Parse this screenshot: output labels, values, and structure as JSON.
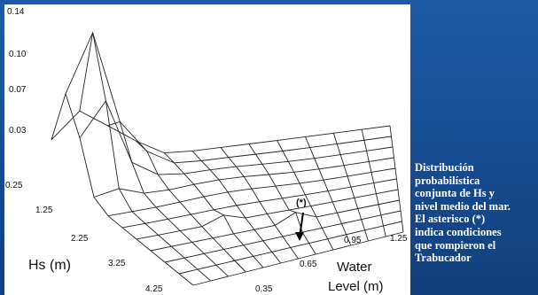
{
  "plot": {
    "z_ticks": [
      "0.14",
      "0.10",
      "0.07",
      "0.03"
    ],
    "hs_ticks": [
      "0.25",
      "1.25",
      "2.25",
      "3.25",
      "4.25"
    ],
    "hs_label": "Hs (m)",
    "wl_ticks": [
      "1.25",
      "0.95",
      "0.65",
      "0.35"
    ],
    "wl_label": [
      "Water",
      "Level (m)"
    ],
    "marker": "(*)"
  },
  "caption": [
    "Distribución",
    "probabilística",
    "conjunta de Hs y",
    "nivel medio del mar.",
    "El asterisco (*)",
    "indica  condiciones",
    "que rompieron el",
    "Trabucador"
  ]
}
